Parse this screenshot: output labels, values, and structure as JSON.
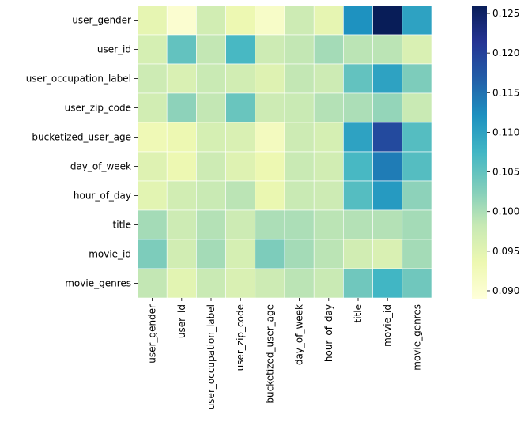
{
  "chart_data": {
    "type": "heatmap",
    "title": "",
    "xlabel": "",
    "ylabel": "",
    "rows": [
      "user_gender",
      "user_id",
      "user_occupation_label",
      "user_zip_code",
      "bucketized_user_age",
      "day_of_week",
      "hour_of_day",
      "title",
      "movie_id",
      "movie_genres"
    ],
    "columns": [
      "user_gender",
      "user_id",
      "user_occupation_label",
      "user_zip_code",
      "bucketized_user_age",
      "day_of_week",
      "hour_of_day",
      "title",
      "movie_id",
      "movie_genres"
    ],
    "values": [
      [
        0.0945,
        0.09,
        0.097,
        0.0935,
        0.091,
        0.0975,
        0.0945,
        0.112,
        0.126,
        0.11
      ],
      [
        0.0965,
        0.105,
        0.0985,
        0.107,
        0.0975,
        0.0985,
        0.1005,
        0.099,
        0.099,
        0.096
      ],
      [
        0.0975,
        0.096,
        0.098,
        0.097,
        0.0955,
        0.0985,
        0.0975,
        0.105,
        0.11,
        0.103
      ],
      [
        0.097,
        0.102,
        0.0985,
        0.1045,
        0.0975,
        0.098,
        0.0995,
        0.1,
        0.1015,
        0.098
      ],
      [
        0.093,
        0.0935,
        0.0965,
        0.096,
        0.092,
        0.0975,
        0.0965,
        0.11,
        0.119,
        0.106
      ],
      [
        0.0955,
        0.0935,
        0.0975,
        0.0955,
        0.0935,
        0.098,
        0.097,
        0.107,
        0.114,
        0.106
      ],
      [
        0.095,
        0.097,
        0.098,
        0.099,
        0.094,
        0.098,
        0.0975,
        0.106,
        0.111,
        0.102
      ],
      [
        0.1005,
        0.0975,
        0.0995,
        0.0975,
        0.1,
        0.1,
        0.099,
        0.0995,
        0.0995,
        0.1005
      ],
      [
        0.103,
        0.097,
        0.1005,
        0.0965,
        0.103,
        0.1005,
        0.099,
        0.097,
        0.096,
        0.1005
      ],
      [
        0.0985,
        0.095,
        0.098,
        0.096,
        0.0975,
        0.099,
        0.098,
        0.104,
        0.1075,
        0.104
      ]
    ],
    "vmin": 0.089,
    "vmax": 0.126,
    "colormap": "YlGnBu",
    "colorbar_ticks": [
      "0.090",
      "0.095",
      "0.100",
      "0.105",
      "0.110",
      "0.115",
      "0.120",
      "0.125"
    ],
    "cell_border_color": "#ffffff"
  }
}
